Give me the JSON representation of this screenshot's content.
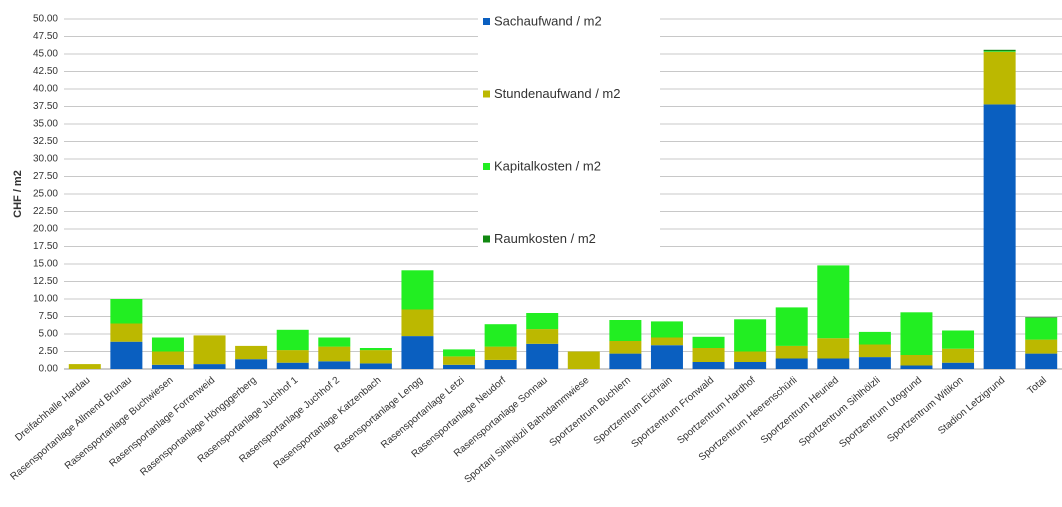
{
  "chart_data": {
    "type": "stacked_bar",
    "y_label": "CHF / m2",
    "categories": [
      "Dreifachhalle Hardau",
      "Rasensportanlage Allmend Brunau",
      "Rasensportanlage Buchwiesen",
      "Rasensportanlage Forrenweid",
      "Rasensportanlage Höngggerberg",
      "Rasensportanlage Juchhof 1",
      "Rasensportanlage Juchhof 2",
      "Rasensportanlage Katzenbach",
      "Rasensportanlage Lengg",
      "Rasensportanlage Letzi",
      "Rasensportanlage Neudorf",
      "Rasensportanlage Sonnau",
      "Sportanl Sihlhölzli Bahndammwiese",
      "Sportzentrum Buchlern",
      "Sportzentrum Eichrain",
      "Sportzentrum Fronwald",
      "Sportzentrum Hardhof",
      "Sportzentrum Heerenschürli",
      "Sportzentrum Heuried",
      "Sportzentrum Sihlhölzli",
      "Sportzentrum Utogrund",
      "Sportzentrum Witikon",
      "Stadion Letzigrund",
      "Total"
    ],
    "series": [
      {
        "name": "Sachaufwand / m2",
        "color": "#0a5fc0",
        "values": [
          0,
          3.9,
          0.6,
          0.7,
          1.4,
          0.9,
          1.1,
          0.8,
          4.7,
          0.6,
          1.3,
          3.6,
          0,
          2.2,
          3.4,
          1.0,
          1.0,
          1.5,
          1.5,
          1.7,
          0.5,
          0.9,
          37.8,
          2.2
        ]
      },
      {
        "name": "Stundenaufwand / m2",
        "color": "#bcb800",
        "values": [
          0.7,
          2.6,
          1.9,
          4.1,
          1.9,
          1.8,
          2.1,
          1.9,
          3.8,
          1.2,
          1.9,
          2.1,
          2.5,
          1.8,
          1.1,
          2.0,
          1.5,
          1.8,
          2.9,
          1.8,
          1.5,
          2.0,
          7.5,
          2.0
        ]
      },
      {
        "name": "Kapitalkosten / m2",
        "color": "#22ee22",
        "values": [
          0,
          3.5,
          2.0,
          0,
          0,
          2.9,
          1.3,
          0.3,
          5.6,
          1.0,
          3.2,
          2.3,
          0,
          3.0,
          2.3,
          1.6,
          4.6,
          5.5,
          10.4,
          1.8,
          6.1,
          2.6,
          0.1,
          3.1
        ]
      },
      {
        "name": "Raumkosten / m2",
        "color": "#118811",
        "values": [
          0,
          0,
          0,
          0,
          0,
          0,
          0,
          0,
          0,
          0,
          0,
          0,
          0,
          0,
          0,
          0,
          0,
          0,
          0,
          0,
          0,
          0,
          0.2,
          0.1
        ]
      }
    ],
    "ylim": [
      0,
      50
    ],
    "yticks": [
      {
        "value": 0,
        "label": "0.00"
      },
      {
        "value": 2.5,
        "label": "2.50"
      },
      {
        "value": 5,
        "label": "5.00"
      },
      {
        "value": 7.5,
        "label": "7.50"
      },
      {
        "value": 10,
        "label": "10.00"
      },
      {
        "value": 12.5,
        "label": "12.50"
      },
      {
        "value": 15,
        "label": "15.00"
      },
      {
        "value": 17.5,
        "label": "17.50"
      },
      {
        "value": 20,
        "label": "20.00"
      },
      {
        "value": 22.5,
        "label": "22.50"
      },
      {
        "value": 25,
        "label": "25.00"
      },
      {
        "value": 27.5,
        "label": "27.50"
      },
      {
        "value": 30,
        "label": "30.00"
      },
      {
        "value": 32.5,
        "label": "32.50"
      },
      {
        "value": 35,
        "label": "35.00"
      },
      {
        "value": 37.5,
        "label": "37.50"
      },
      {
        "value": 40,
        "label": "40.00"
      },
      {
        "value": 42.5,
        "label": "42.50"
      },
      {
        "value": 45,
        "label": "45.00"
      },
      {
        "value": 47.5,
        "label": "47.50"
      },
      {
        "value": 50,
        "label": "50.00"
      }
    ],
    "grid": true
  }
}
